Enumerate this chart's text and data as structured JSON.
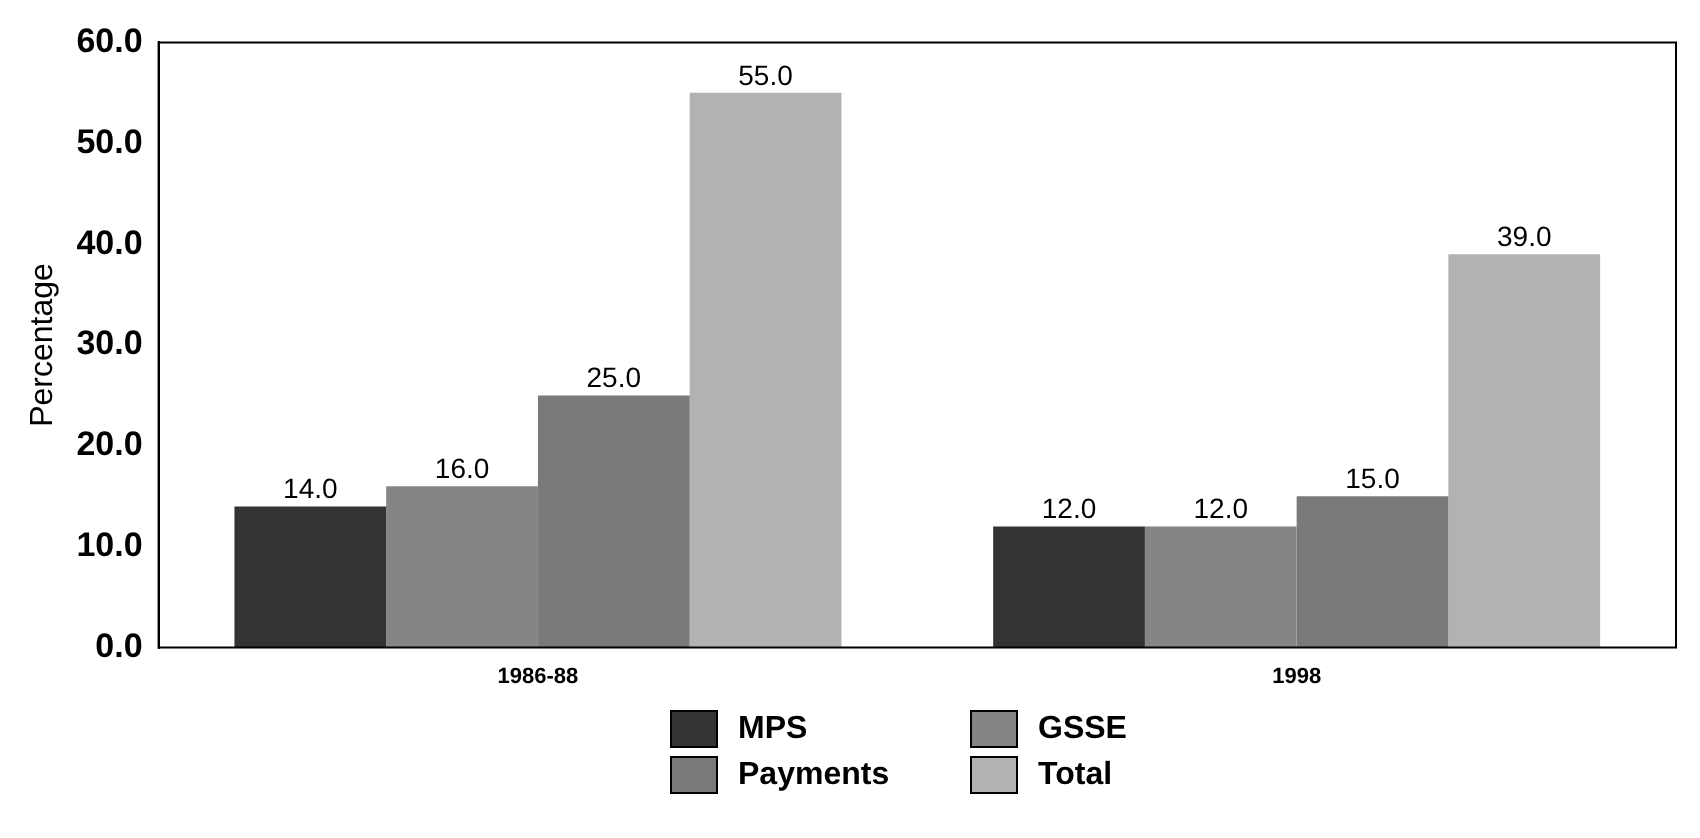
{
  "chart_data": {
    "type": "bar",
    "ylabel": "Percentage",
    "categories": [
      "1986-88",
      "1998"
    ],
    "series": [
      {
        "name": "MPS",
        "color": "#333333",
        "values": [
          14,
          12
        ],
        "value_labels": [
          "14.0",
          "12.0"
        ]
      },
      {
        "name": "GSSE",
        "color": "#858585",
        "values": [
          16,
          12
        ],
        "value_labels": [
          "16.0",
          "12.0"
        ]
      },
      {
        "name": "Payments",
        "color": "#7a7a7a",
        "values": [
          25,
          15
        ],
        "value_labels": [
          "25.0",
          "15.0"
        ]
      },
      {
        "name": "Total",
        "color": "#b2b2b2",
        "values": [
          55,
          39
        ],
        "value_labels": [
          "55.0",
          "39.0"
        ]
      }
    ],
    "ylim": [
      0,
      60
    ],
    "yticks": [
      {
        "value": 0,
        "label": "0.0"
      },
      {
        "value": 10,
        "label": "10.0"
      },
      {
        "value": 20,
        "label": "20.0"
      },
      {
        "value": 30,
        "label": "30.0"
      },
      {
        "value": 40,
        "label": "40.0"
      },
      {
        "value": 50,
        "label": "50.0"
      },
      {
        "value": 60,
        "label": "60.0"
      }
    ],
    "grid": false,
    "legend": "bottom"
  }
}
